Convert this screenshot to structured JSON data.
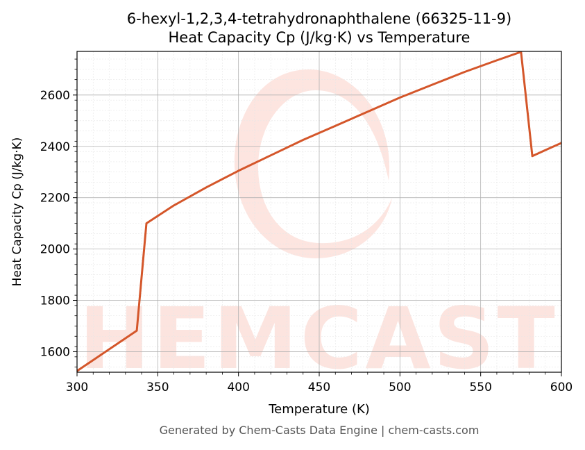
{
  "chart_data": {
    "type": "line",
    "title_line1": "6-hexyl-1,2,3,4-tetrahydronaphthalene (66325-11-9)",
    "title_line2": "Heat Capacity Cp (J/kg·K) vs Temperature",
    "xlabel": "Temperature (K)",
    "ylabel": "Heat Capacity Cp (J/kg·K)",
    "xlim": [
      300,
      600
    ],
    "ylim": [
      1520,
      2770
    ],
    "xticks": [
      300,
      350,
      400,
      450,
      500,
      550,
      600
    ],
    "yticks": [
      1600,
      1800,
      2000,
      2200,
      2400,
      2600
    ],
    "grid": true,
    "line_color": "#d4562a",
    "series": [
      {
        "x": [
          300,
          337,
          343,
          360,
          380,
          400,
          420,
          440,
          460,
          480,
          500,
          520,
          540,
          560,
          575,
          582,
          590,
          600
        ],
        "values": [
          1525,
          1682,
          2100,
          2170,
          2240,
          2305,
          2365,
          2425,
          2480,
          2535,
          2590,
          2640,
          2690,
          2735,
          2768,
          2362,
          2385,
          2413
        ]
      }
    ],
    "watermark": "CHEMCASTS",
    "footer": "Generated by Chem-Casts Data Engine | chem-casts.com"
  }
}
